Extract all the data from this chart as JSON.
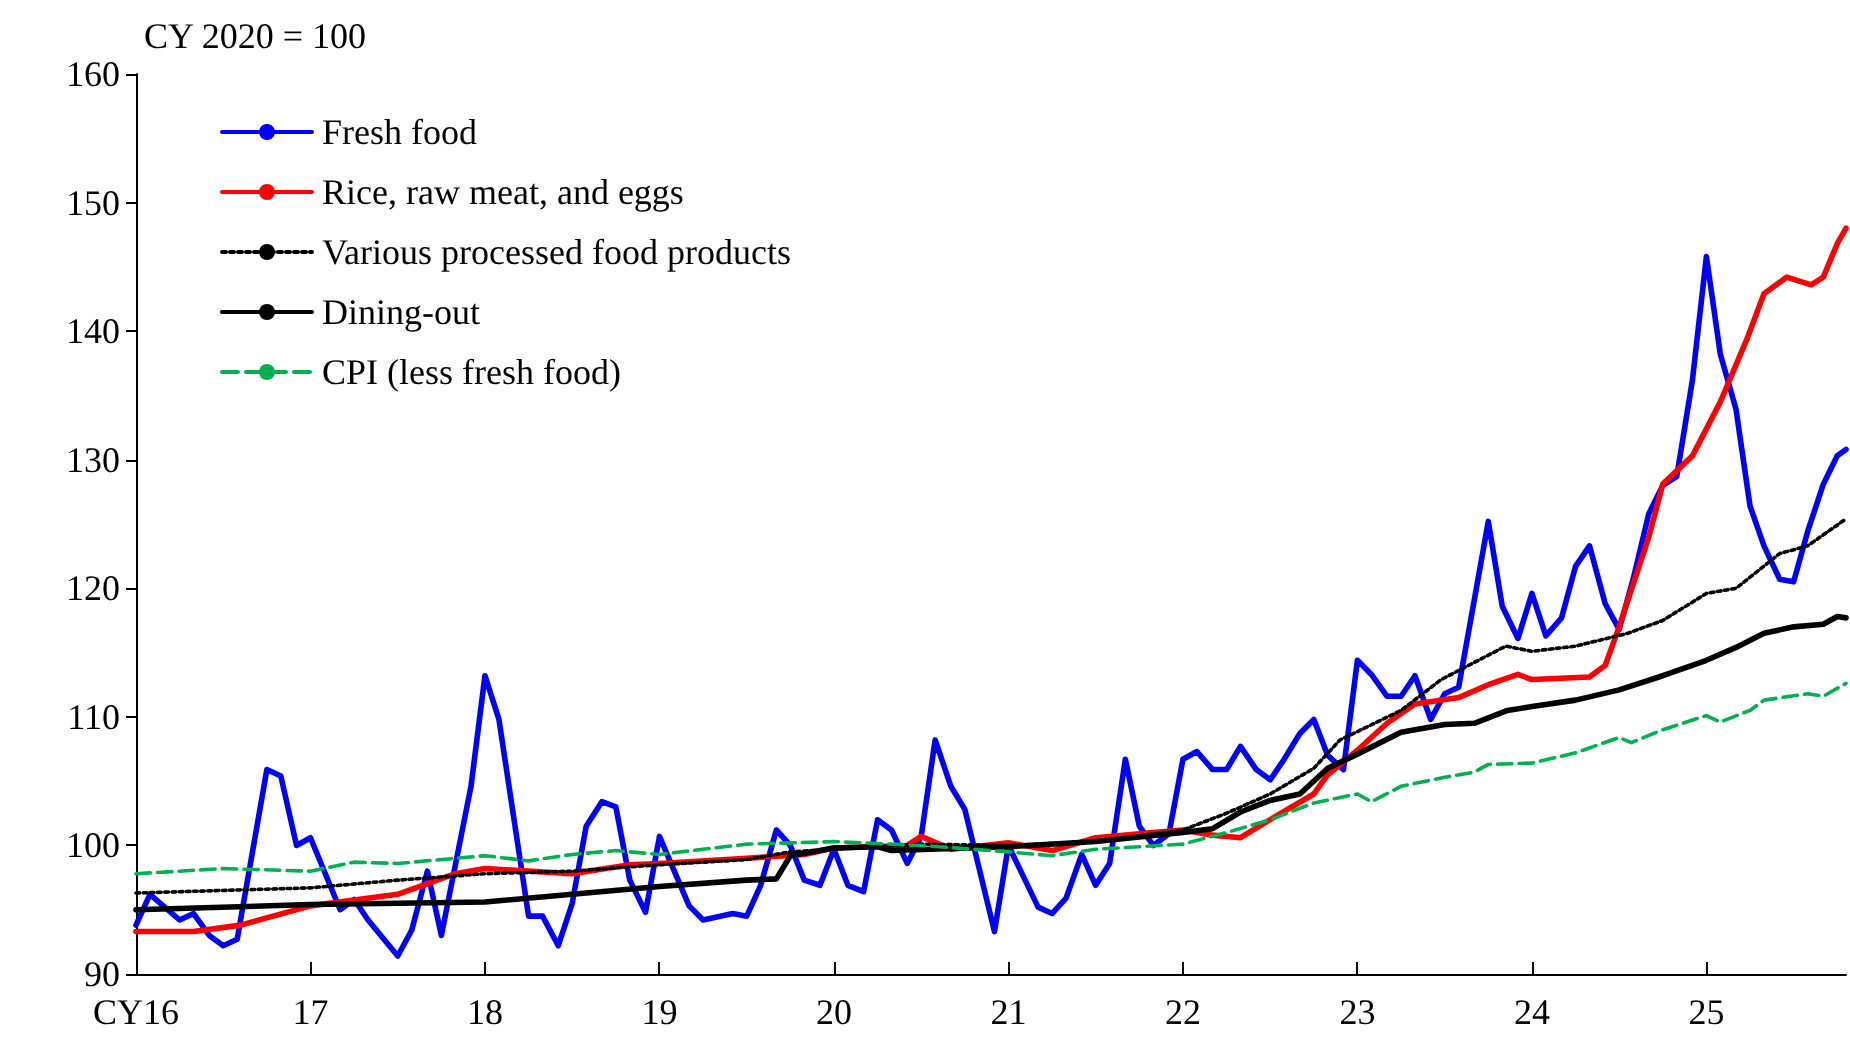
{
  "chart_data": {
    "type": "line",
    "ylabel": "CY 2020 = 100",
    "xlim": [
      2016,
      2025.8
    ],
    "xticks": [
      {
        "value": 2016,
        "label": "CY16"
      },
      {
        "value": 2017,
        "label": "17"
      },
      {
        "value": 2018,
        "label": "18"
      },
      {
        "value": 2019,
        "label": "19"
      },
      {
        "value": 2020,
        "label": "20"
      },
      {
        "value": 2021,
        "label": "21"
      },
      {
        "value": 2022,
        "label": "22"
      },
      {
        "value": 2023,
        "label": "23"
      },
      {
        "value": 2024,
        "label": "24"
      },
      {
        "value": 2025,
        "label": "25"
      }
    ],
    "ylim": [
      90,
      160
    ],
    "yticks": [
      90,
      100,
      110,
      120,
      130,
      140,
      150,
      160
    ],
    "grid": false,
    "legend": "top left",
    "marker": "none",
    "series": [
      {
        "name": "Fresh food",
        "color": "#0000ff",
        "line_style": "solid",
        "x": [
          2016,
          2016.08,
          2016.25,
          2016.33,
          2016.42,
          2016.5,
          2016.58,
          2016.75,
          2016.83,
          2016.92,
          2017,
          2017.17,
          2017.25,
          2017.33,
          2017.5,
          2017.58,
          2017.67,
          2017.75,
          2017.92,
          2018,
          2018.08,
          2018.25,
          2018.33,
          2018.42,
          2018.5,
          2018.58,
          2018.67,
          2018.75,
          2018.83,
          2018.92,
          2019,
          2019.17,
          2019.25,
          2019.42,
          2019.5,
          2019.58,
          2019.67,
          2019.75,
          2019.83,
          2019.92,
          2020,
          2020.08,
          2020.17,
          2020.25,
          2020.33,
          2020.42,
          2020.5,
          2020.58,
          2020.67,
          2020.75,
          2020.92,
          2021,
          2021.17,
          2021.25,
          2021.33,
          2021.42,
          2021.5,
          2021.58,
          2021.67,
          2021.75,
          2021.83,
          2021.92,
          2022,
          2022.08,
          2022.17,
          2022.25,
          2022.33,
          2022.42,
          2022.5,
          2022.58,
          2022.67,
          2022.75,
          2022.83,
          2022.92,
          2023,
          2023.08,
          2023.17,
          2023.25,
          2023.33,
          2023.42,
          2023.5,
          2023.58,
          2023.67,
          2023.75,
          2023.83,
          2023.92,
          2024,
          2024.08,
          2024.17,
          2024.25,
          2024.33,
          2024.42,
          2024.5,
          2024.58,
          2024.67,
          2024.75,
          2024.83,
          2024.92,
          2025,
          2025.08,
          2025.17,
          2025.25,
          2025.33,
          2025.42,
          2025.5,
          2025.58,
          2025.67,
          2025.75,
          2025.8
        ],
        "values": [
          93.8,
          96.2,
          94.2,
          94.7,
          93.0,
          92.2,
          92.7,
          105.9,
          105.4,
          100.0,
          100.6,
          95.0,
          95.8,
          94.2,
          91.4,
          93.4,
          98.0,
          93.0,
          104.6,
          113.2,
          109.8,
          94.5,
          94.5,
          92.2,
          95.5,
          101.5,
          103.4,
          103.0,
          97.3,
          94.8,
          100.7,
          95.3,
          94.2,
          94.7,
          94.5,
          96.9,
          101.2,
          100.0,
          97.3,
          96.9,
          99.7,
          96.9,
          96.4,
          102.0,
          101.2,
          98.6,
          100.7,
          108.2,
          104.6,
          102.8,
          93.3,
          100.0,
          95.2,
          94.7,
          95.9,
          99.3,
          96.9,
          98.6,
          106.7,
          101.5,
          100.0,
          100.9,
          106.7,
          107.3,
          105.9,
          105.9,
          107.7,
          105.9,
          105.1,
          106.7,
          108.7,
          109.8,
          107.0,
          105.9,
          114.4,
          113.3,
          111.6,
          111.6,
          113.2,
          109.8,
          111.8,
          112.3,
          119.1,
          125.2,
          118.6,
          116.1,
          119.6,
          116.3,
          117.7,
          121.7,
          123.3,
          118.8,
          116.8,
          120.7,
          125.8,
          128.0,
          128.7,
          136.2,
          145.8,
          138.2,
          133.9,
          126.4,
          123.3,
          120.7,
          120.5,
          124.4,
          128.1,
          130.3,
          130.8
        ]
      },
      {
        "name": "Rice, raw meat, and eggs",
        "color": "#ff0000",
        "line_style": "solid",
        "x": [
          2016,
          2016.33,
          2016.6,
          2017,
          2017.5,
          2017.83,
          2018,
          2018.5,
          2018.83,
          2019,
          2019.5,
          2019.83,
          2020,
          2020.42,
          2020.5,
          2020.67,
          2021,
          2021.25,
          2021.5,
          2021.83,
          2022,
          2022.17,
          2022.33,
          2022.5,
          2022.75,
          2022.83,
          2023,
          2023.17,
          2023.33,
          2023.58,
          2023.75,
          2023.92,
          2024,
          2024.33,
          2024.42,
          2024.5,
          2024.67,
          2024.75,
          2024.92,
          2025.08,
          2025.23,
          2025.33,
          2025.46,
          2025.6,
          2025.67,
          2025.75,
          2025.8
        ],
        "values": [
          93.3,
          93.3,
          93.8,
          95.3,
          96.2,
          97.8,
          98.2,
          97.8,
          98.5,
          98.6,
          99.0,
          99.3,
          99.8,
          100.0,
          100.7,
          99.7,
          100.2,
          99.6,
          100.6,
          101.0,
          101.2,
          100.8,
          100.6,
          102.0,
          104.0,
          105.5,
          107.4,
          109.5,
          111.0,
          111.5,
          112.5,
          113.3,
          112.9,
          113.1,
          114.0,
          117.0,
          124.0,
          128.1,
          130.3,
          134.5,
          139.3,
          142.9,
          144.2,
          143.6,
          144.2,
          146.8,
          148.0
        ]
      },
      {
        "name": "Various processed food products",
        "color": "#000000",
        "line_style": "dotted",
        "x": [
          2016,
          2017,
          2017.5,
          2018,
          2018.5,
          2019,
          2019.5,
          2019.75,
          2020,
          2020.5,
          2021,
          2021.5,
          2022,
          2022.25,
          2022.5,
          2022.75,
          2022.9,
          2023.25,
          2023.48,
          2023.85,
          2024,
          2024.25,
          2024.55,
          2024.75,
          2025,
          2025.17,
          2025.42,
          2025.58,
          2025.8
        ],
        "values": [
          96.3,
          96.7,
          97.3,
          97.8,
          98.0,
          98.5,
          98.9,
          99.5,
          99.7,
          100.1,
          100.0,
          100.3,
          101.2,
          102.5,
          104.0,
          106.0,
          108.2,
          110.5,
          112.9,
          115.5,
          115.1,
          115.5,
          116.5,
          117.5,
          119.6,
          120.0,
          122.7,
          123.3,
          125.4
        ]
      },
      {
        "name": "Dining-out",
        "color": "#000000",
        "line_style": "solid",
        "x": [
          2016,
          2017,
          2018,
          2018.5,
          2019,
          2019.5,
          2019.67,
          2019.75,
          2020,
          2020.25,
          2020.33,
          2021,
          2021.5,
          2022,
          2022.17,
          2022.33,
          2022.5,
          2022.67,
          2022.83,
          2023,
          2023.25,
          2023.5,
          2023.67,
          2023.86,
          2024,
          2024.25,
          2024.5,
          2024.75,
          2025,
          2025.17,
          2025.33,
          2025.5,
          2025.67,
          2025.75,
          2025.8
        ],
        "values": [
          95.0,
          95.4,
          95.6,
          96.2,
          96.8,
          97.3,
          97.4,
          99.2,
          99.8,
          99.9,
          99.6,
          99.9,
          100.3,
          101.0,
          101.3,
          102.6,
          103.5,
          104.0,
          106.0,
          107.1,
          108.8,
          109.4,
          109.5,
          110.5,
          110.8,
          111.3,
          112.1,
          113.2,
          114.4,
          115.4,
          116.5,
          117.0,
          117.2,
          117.8,
          117.7
        ]
      },
      {
        "name": "CPI (less fresh food)",
        "color": "#00b050",
        "line_style": "dashed",
        "x": [
          2016,
          2016.5,
          2017,
          2017.25,
          2017.5,
          2018,
          2018.25,
          2018.5,
          2018.75,
          2019,
          2019.5,
          2019.75,
          2020,
          2020.5,
          2021,
          2021.25,
          2021.5,
          2022,
          2022.25,
          2022.5,
          2022.75,
          2023,
          2023.08,
          2023.25,
          2023.5,
          2023.67,
          2023.75,
          2024,
          2024.25,
          2024.5,
          2024.57,
          2024.75,
          2025,
          2025.08,
          2025.25,
          2025.33,
          2025.58,
          2025.67,
          2025.8
        ],
        "values": [
          97.8,
          98.2,
          98.0,
          98.7,
          98.6,
          99.2,
          98.8,
          99.3,
          99.6,
          99.3,
          100.1,
          100.2,
          100.3,
          100.0,
          99.5,
          99.2,
          99.7,
          100.1,
          101.0,
          102.0,
          103.3,
          104.0,
          103.4,
          104.6,
          105.3,
          105.7,
          106.3,
          106.4,
          107.2,
          108.4,
          108.0,
          109.0,
          110.1,
          109.6,
          110.5,
          111.3,
          111.8,
          111.6,
          112.6
        ]
      }
    ]
  }
}
